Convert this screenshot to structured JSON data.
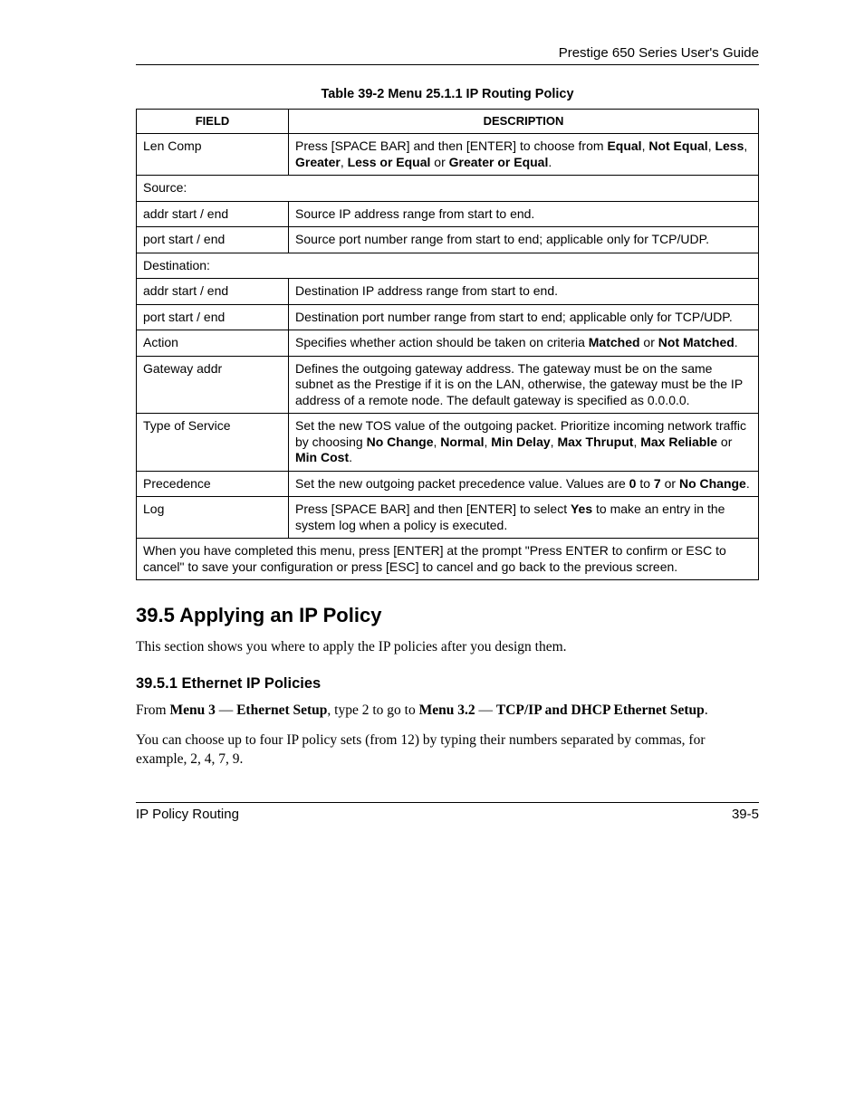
{
  "header": {
    "guide_title": "Prestige 650 Series User's Guide"
  },
  "table": {
    "caption": "Table 39-2 Menu 25.1.1 IP Routing Policy",
    "col_field": "FIELD",
    "col_desc": "DESCRIPTION",
    "rows": {
      "len_comp": {
        "field": "Len Comp",
        "d1": "Press [SPACE BAR] and then [ENTER] to choose from ",
        "b1": "Equal",
        "c1": ", ",
        "b2": "Not Equal",
        "c2": ", ",
        "b3": "Less",
        "c3": ", ",
        "b4": "Greater",
        "c4": ", ",
        "b5": "Less or Equal",
        "c5": " or ",
        "b6": "Greater or Equal",
        "c6": "."
      },
      "source": {
        "field": "Source:"
      },
      "src_addr": {
        "field": "addr start / end",
        "desc": "Source IP address range from start to end."
      },
      "src_port": {
        "field": "port start / end",
        "desc": "Source port number range from start to end; applicable only for TCP/UDP."
      },
      "dest": {
        "field": "Destination:"
      },
      "dst_addr": {
        "field": "addr start / end",
        "desc": "Destination IP address range from start to end."
      },
      "dst_port": {
        "field": "port start / end",
        "desc": "Destination port number range from start to end; applicable only for TCP/UDP."
      },
      "action": {
        "field": "Action",
        "d1": "Specifies whether action should be taken on criteria ",
        "b1": "Matched",
        "c1": " or ",
        "b2": "Not Matched",
        "c2": "."
      },
      "gateway": {
        "field": "Gateway addr",
        "desc": "Defines the outgoing gateway address. The gateway must be on the same subnet as the Prestige if it is on the LAN, otherwise, the gateway must be the IP address of a remote node. The default gateway is specified as 0.0.0.0."
      },
      "tos": {
        "field": "Type of Service",
        "d1": "Set the new TOS value of the outgoing packet. Prioritize incoming network traffic by choosing ",
        "b1": "No Change",
        "c1": ", ",
        "b2": "Normal",
        "c2": ", ",
        "b3": "Min Delay",
        "c3": ", ",
        "b4": "Max Thruput",
        "c4": ", ",
        "b5": "Max Reliable",
        "c5": " or ",
        "b6": "Min Cost",
        "c6": "."
      },
      "prec": {
        "field": "Precedence",
        "d1": "Set the new outgoing packet precedence value. Values are ",
        "b1": "0",
        "c1": " to ",
        "b2": "7",
        "c2": " or ",
        "b3": "No Change",
        "c3": "."
      },
      "log": {
        "field": "Log",
        "d1": "Press [SPACE BAR] and then [ENTER] to select ",
        "b1": "Yes",
        "d2": " to make an entry in the system log when a policy is executed."
      },
      "footnote": "When you have completed this menu, press [ENTER] at the prompt \"Press ENTER to confirm or ESC to cancel\" to save your configuration or press [ESC] to cancel and go back to the previous screen."
    }
  },
  "section": {
    "h2": "39.5  Applying an IP Policy",
    "p1": "This section shows you where to apply the IP policies after you design them.",
    "h3": "39.5.1 Ethernet IP Policies",
    "p2": {
      "t1": "From ",
      "b1": "Menu 3",
      "t2": " — ",
      "b2": "Ethernet Setup",
      "t3": ", type 2 to go to ",
      "b3": "Menu 3.2",
      "t4": " — ",
      "b4": "TCP/IP and DHCP Ethernet Setup",
      "t5": "."
    },
    "p3": "You can choose up to four IP policy sets (from 12) by typing their numbers separated by commas, for example, 2, 4, 7, 9."
  },
  "footer": {
    "left": "IP Policy Routing",
    "right": "39-5"
  }
}
